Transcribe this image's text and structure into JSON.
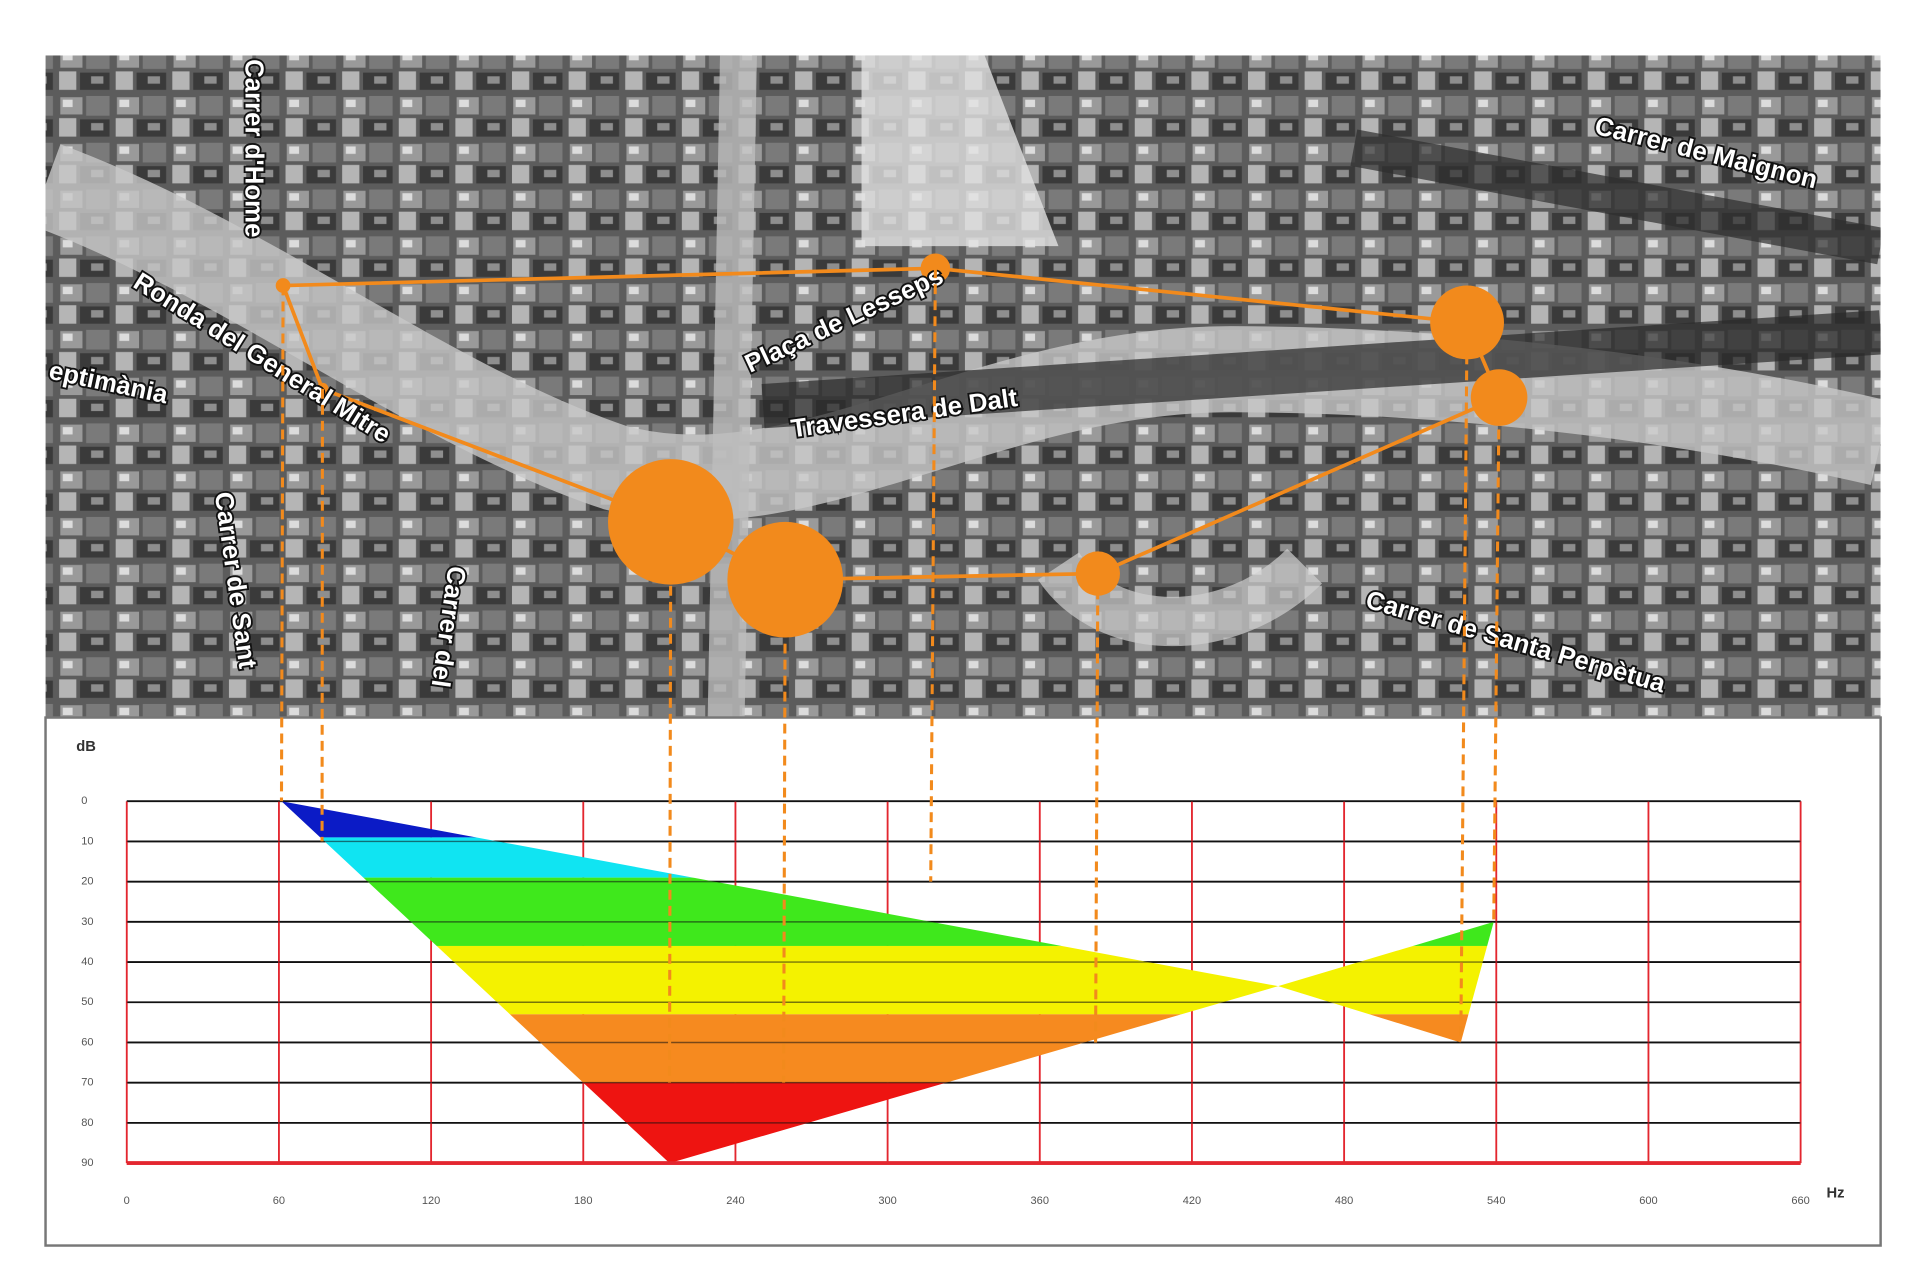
{
  "map": {
    "street_labels": [
      "Carrer d'Home",
      "Ronda del General Mitre",
      "eptimània",
      "Carrer de Sant",
      "Carrer del",
      "Plaça de Lesseps",
      "Travessera de Dalt",
      "Carrer de Maignon",
      "Carrer de Santa Perpètua"
    ]
  },
  "chart_data": {
    "type": "area",
    "y_label": "dB",
    "x_label": "Hz",
    "xlim": [
      0,
      660
    ],
    "xticks": [
      0,
      60,
      120,
      180,
      240,
      300,
      360,
      420,
      480,
      540,
      600,
      660
    ],
    "ylim": [
      0,
      90
    ],
    "yticks": [
      0,
      10,
      20,
      30,
      40,
      50,
      60,
      70,
      80,
      90
    ],
    "y_inverted": true,
    "grid": true,
    "grid_color": "#e3262f",
    "points": {
      "color": "#f28a1c",
      "hz": [
        61,
        77,
        214,
        259,
        317,
        382,
        526,
        539
      ],
      "db": [
        0,
        10,
        70,
        70,
        20,
        60,
        60,
        30
      ]
    },
    "outline": {
      "hz": [
        61,
        454,
        539,
        526,
        454,
        214
      ],
      "db": [
        0,
        46,
        30,
        60,
        46,
        90
      ]
    },
    "bands": [
      {
        "from": 0,
        "to": 9,
        "color": "#0b1bc6"
      },
      {
        "from": 9,
        "to": 19,
        "color": "#10e4f2"
      },
      {
        "from": 19,
        "to": 36,
        "color": "#3fe81c"
      },
      {
        "from": 36,
        "to": 53,
        "color": "#f4f200"
      },
      {
        "from": 53,
        "to": 70,
        "color": "#f68a1f"
      },
      {
        "from": 70,
        "to": 90,
        "color": "#ee1411"
      }
    ]
  }
}
